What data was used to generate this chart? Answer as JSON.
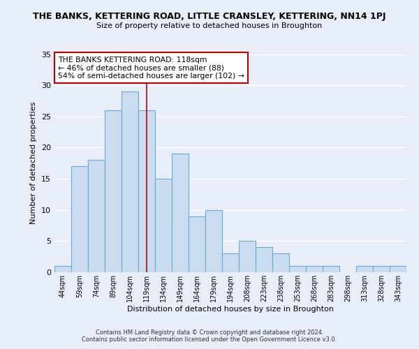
{
  "title": "THE BANKS, KETTERING ROAD, LITTLE CRANSLEY, KETTERING, NN14 1PJ",
  "subtitle": "Size of property relative to detached houses in Broughton",
  "xlabel": "Distribution of detached houses by size in Broughton",
  "ylabel": "Number of detached properties",
  "categories": [
    "44sqm",
    "59sqm",
    "74sqm",
    "89sqm",
    "104sqm",
    "119sqm",
    "134sqm",
    "149sqm",
    "164sqm",
    "179sqm",
    "194sqm",
    "208sqm",
    "223sqm",
    "238sqm",
    "253sqm",
    "268sqm",
    "283sqm",
    "298sqm",
    "313sqm",
    "328sqm",
    "343sqm"
  ],
  "values": [
    1,
    17,
    18,
    26,
    29,
    26,
    15,
    19,
    9,
    10,
    3,
    5,
    4,
    3,
    1,
    1,
    1,
    0,
    1,
    1,
    1
  ],
  "bar_color": "#c9dcf0",
  "bar_edge_color": "#6aaad4",
  "vline_index": 5,
  "vline_color": "#c00000",
  "annotation_text": "THE BANKS KETTERING ROAD: 118sqm\n← 46% of detached houses are smaller (88)\n54% of semi-detached houses are larger (102) →",
  "annotation_box_color": "#ffffff",
  "annotation_box_edge": "#c00000",
  "ylim": [
    0,
    35
  ],
  "yticks": [
    0,
    5,
    10,
    15,
    20,
    25,
    30,
    35
  ],
  "footer1": "Contains HM Land Registry data © Crown copyright and database right 2024.",
  "footer2": "Contains public sector information licensed under the Open Government Licence v3.0.",
  "background_color": "#e8eef8",
  "plot_bg_color": "#e8eef8",
  "grid_color": "#ffffff"
}
